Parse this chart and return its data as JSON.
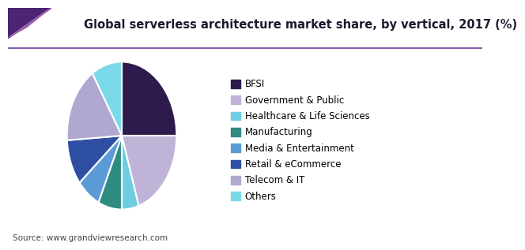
{
  "title": "Global serverless architecture market share, by vertical, 2017 (%)",
  "source": "Source: www.grandviewresearch.com",
  "labels": [
    "BFSI",
    "Government & Public",
    "Healthcare & Life Sciences",
    "Manufacturing",
    "Media & Entertainment",
    "Retail & eCommerce",
    "Telecom & IT",
    "Others"
  ],
  "values": [
    25,
    20,
    5,
    7,
    7,
    10,
    17,
    9
  ],
  "colors": [
    "#2d1b4e",
    "#c0b3d8",
    "#6ecde0",
    "#2e8b82",
    "#5b9bd5",
    "#2e4fa3",
    "#b0a8d0",
    "#7ad9e8"
  ],
  "background_color": "#ffffff",
  "title_fontsize": 10.5,
  "legend_fontsize": 8.5,
  "source_fontsize": 7.5,
  "startangle": 90,
  "header_line_color": "#6a3d9a",
  "header_triangle_color1": "#4b2475",
  "header_triangle_color2": "#9b5fa5"
}
